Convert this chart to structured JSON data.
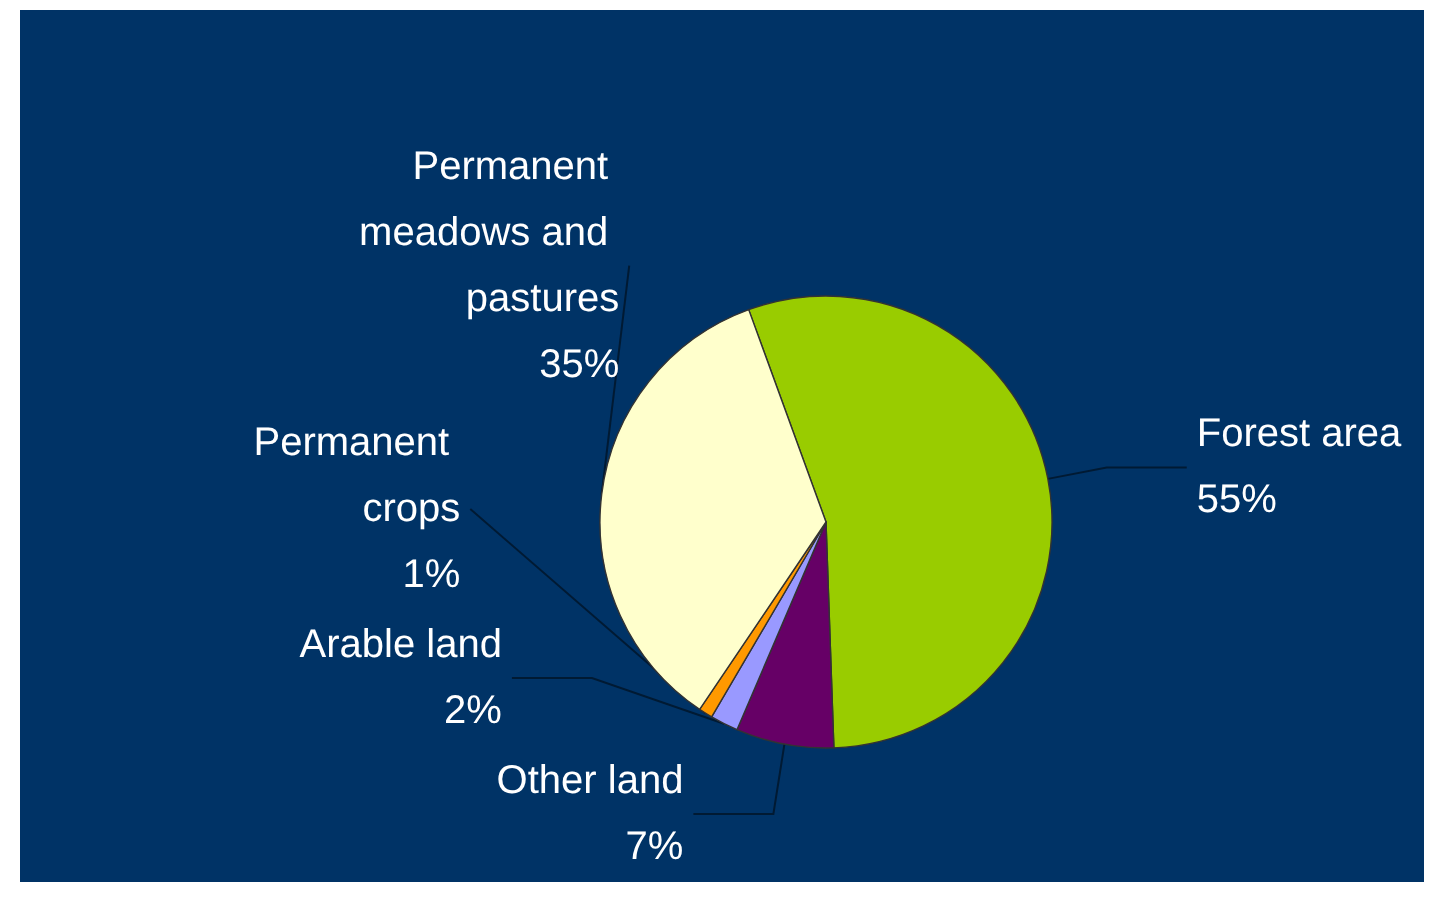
{
  "chart_data": {
    "type": "pie",
    "categories": [
      "Forest area",
      "Other land",
      "Arable land",
      "Permanent crops",
      "Permanent meadows and pastures"
    ],
    "values": [
      55,
      7,
      2,
      1,
      35
    ],
    "value_labels": [
      "55%",
      "7%",
      "2%",
      "1%",
      "35%"
    ],
    "colors": [
      "#99cc00",
      "#660066",
      "#9999ff",
      "#ff9900",
      "#ffffcc"
    ],
    "legend": false
  }
}
